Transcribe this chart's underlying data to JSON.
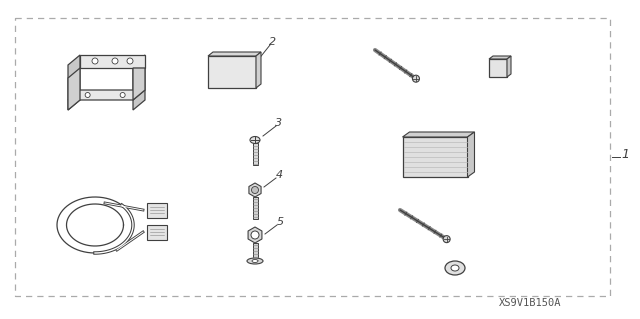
{
  "background_color": "#ffffff",
  "watermark": "XS9V1B150A",
  "label_1": "1",
  "label_2": "2",
  "label_3": "3",
  "label_4": "4",
  "label_5": "5",
  "line_color": "#404040",
  "label_fontsize": 8,
  "watermark_fontsize": 7.5,
  "border": [
    15,
    18,
    595,
    278
  ]
}
